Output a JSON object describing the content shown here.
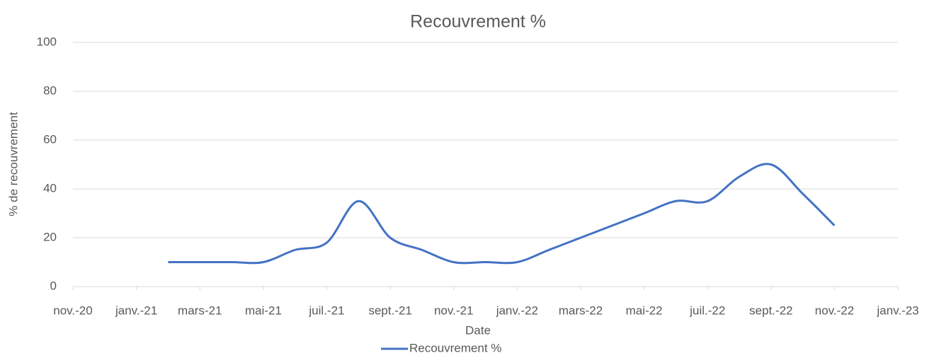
{
  "chart_data": {
    "type": "line",
    "title": "Recouvrement %",
    "x_label": "Date",
    "y_label": "% de recouvrement",
    "x": [
      "2021-02",
      "2021-03",
      "2021-04",
      "2021-05",
      "2021-06",
      "2021-07",
      "2021-08",
      "2021-09",
      "2021-10",
      "2021-11",
      "2021-12",
      "2022-01",
      "2022-02",
      "2022-03",
      "2022-04",
      "2022-05",
      "2022-06",
      "2022-07",
      "2022-08",
      "2022-09",
      "2022-10",
      "2022-11"
    ],
    "series": [
      {
        "name": "Recouvrement %",
        "color": "#4472c4",
        "values": [
          10,
          10,
          10,
          10,
          15,
          18,
          35,
          20,
          15,
          10,
          10,
          10,
          15,
          20,
          25,
          30,
          35,
          35,
          45,
          50,
          38,
          25
        ]
      }
    ],
    "xlim": [
      "2020-11",
      "2023-01"
    ],
    "xticks": [
      {
        "value": "2020-11",
        "label": "nov.-20"
      },
      {
        "value": "2021-01",
        "label": "janv.-21"
      },
      {
        "value": "2021-03",
        "label": "mars-21"
      },
      {
        "value": "2021-05",
        "label": "mai-21"
      },
      {
        "value": "2021-07",
        "label": "juil.-21"
      },
      {
        "value": "2021-09",
        "label": "sept.-21"
      },
      {
        "value": "2021-11",
        "label": "nov.-21"
      },
      {
        "value": "2022-01",
        "label": "janv.-22"
      },
      {
        "value": "2022-03",
        "label": "mars-22"
      },
      {
        "value": "2022-05",
        "label": "mai-22"
      },
      {
        "value": "2022-07",
        "label": "juil.-22"
      },
      {
        "value": "2022-09",
        "label": "sept.-22"
      },
      {
        "value": "2022-11",
        "label": "nov.-22"
      },
      {
        "value": "2023-01",
        "label": "janv.-23"
      }
    ],
    "ylim": [
      0,
      100
    ],
    "yticks": [
      0,
      20,
      40,
      60,
      80,
      100
    ],
    "grid": true,
    "legend": "bottom"
  }
}
